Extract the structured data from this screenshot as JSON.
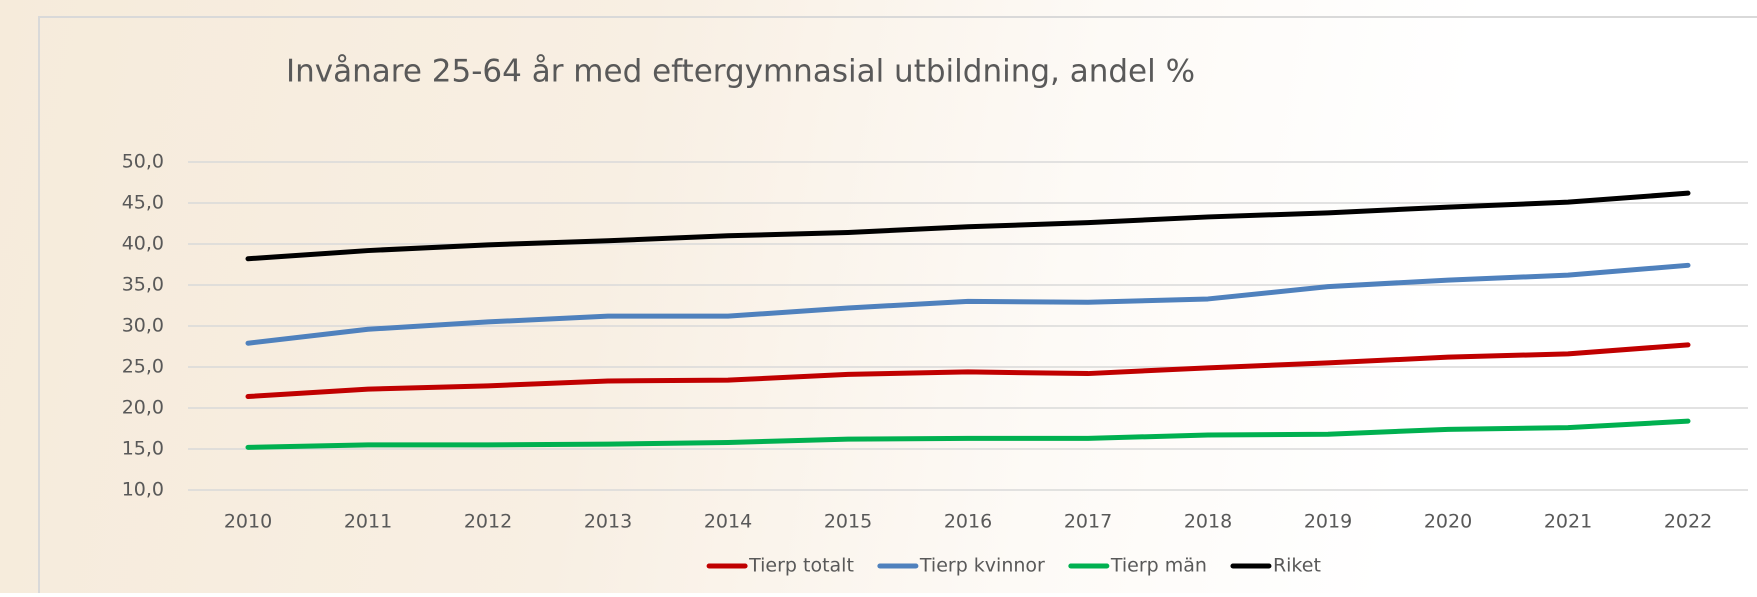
{
  "chart_data": {
    "type": "line",
    "title": "Invånare 25-64 år med eftergymnasial utbildning, andel %",
    "categories": [
      "2010",
      "2011",
      "2012",
      "2013",
      "2014",
      "2015",
      "2016",
      "2017",
      "2018",
      "2019",
      "2020",
      "2021",
      "2022"
    ],
    "ylim": [
      10,
      50
    ],
    "yticks": [
      {
        "value": 10,
        "label": "10,0"
      },
      {
        "value": 15,
        "label": "15,0"
      },
      {
        "value": 20,
        "label": "20,0"
      },
      {
        "value": 25,
        "label": "25,0"
      },
      {
        "value": 30,
        "label": "30,0"
      },
      {
        "value": 35,
        "label": "35,0"
      },
      {
        "value": 40,
        "label": "40,0"
      },
      {
        "value": 45,
        "label": "45,0"
      },
      {
        "value": 50,
        "label": "50,0"
      }
    ],
    "grid": true,
    "legend": "bottom",
    "series": [
      {
        "name": "Tierp totalt",
        "color": "#c00000",
        "values": [
          21.4,
          22.3,
          22.7,
          23.3,
          23.4,
          24.1,
          24.4,
          24.2,
          24.9,
          25.5,
          26.2,
          26.6,
          27.7
        ]
      },
      {
        "name": "Tierp kvinnor",
        "color": "#4f81bd",
        "values": [
          27.9,
          29.6,
          30.5,
          31.2,
          31.2,
          32.2,
          33.0,
          32.9,
          33.3,
          34.8,
          35.6,
          36.2,
          37.4
        ]
      },
      {
        "name": "Tierp män",
        "color": "#00b050",
        "values": [
          15.2,
          15.5,
          15.5,
          15.6,
          15.8,
          16.2,
          16.3,
          16.3,
          16.7,
          16.8,
          17.4,
          17.6,
          18.4
        ]
      },
      {
        "name": "Riket",
        "color": "#000000",
        "values": [
          38.2,
          39.2,
          39.9,
          40.4,
          41.0,
          41.4,
          42.1,
          42.6,
          43.3,
          43.8,
          44.5,
          45.1,
          46.2
        ]
      }
    ]
  }
}
